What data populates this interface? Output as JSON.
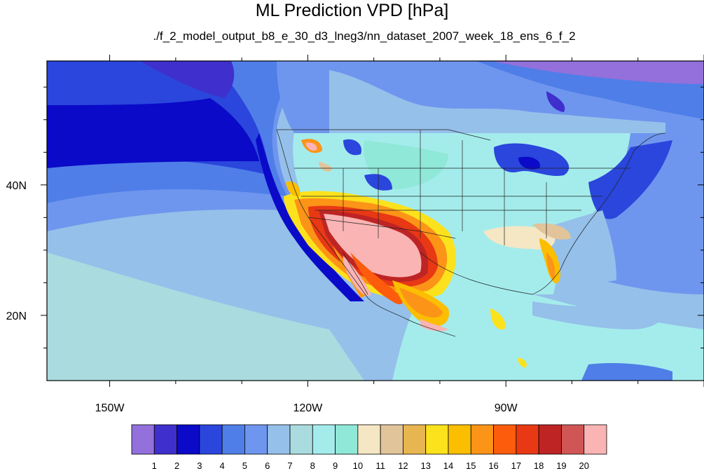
{
  "chart_data": {
    "type": "heatmap",
    "title": "ML Prediction VPD [hPa]",
    "subtitle": "./f_2_model_output_b8_e_30_d3_lneg3/nn_dataset_2007_week_18_ens_6_f_2",
    "x_ticks": [
      {
        "lon": -150,
        "label": "150W"
      },
      {
        "lon": -120,
        "label": "120W"
      },
      {
        "lon": -90,
        "label": "90W"
      }
    ],
    "y_ticks": [
      {
        "lat": 40,
        "label": "40N"
      },
      {
        "lat": 20,
        "label": "20N"
      }
    ],
    "lon_range": [
      -159.5,
      -60
    ],
    "lat_range": [
      10,
      59
    ],
    "colorbar": {
      "labels": [
        "1",
        "2",
        "3",
        "4",
        "5",
        "6",
        "7",
        "8",
        "9",
        "10",
        "11",
        "12",
        "13",
        "14",
        "15",
        "16",
        "17",
        "18",
        "19",
        "20"
      ],
      "colors": [
        "#9370db",
        "#3f2fcc",
        "#0a0ac8",
        "#2a46dc",
        "#4f7ee8",
        "#6f96ee",
        "#95c0ea",
        "#aadcdf",
        "#a4ecec",
        "#90e8d8",
        "#f5e6c4",
        "#e1c49a",
        "#e8b650",
        "#fce21c",
        "#fcbe00",
        "#fc9418",
        "#fc5c0c",
        "#e83814",
        "#be2424",
        "#d05656",
        "#fab4b4"
      ]
    }
  }
}
